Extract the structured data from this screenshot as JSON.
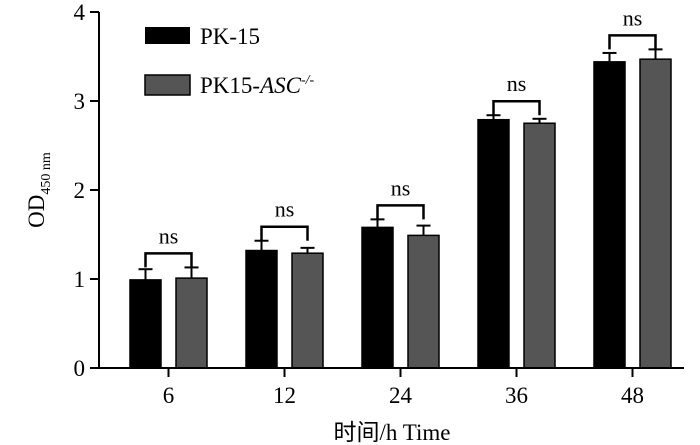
{
  "chart_data": {
    "type": "bar",
    "categories": [
      "6",
      "12",
      "24",
      "36",
      "48"
    ],
    "series": [
      {
        "name": "PK-15",
        "color": "#000000",
        "values": [
          0.99,
          1.32,
          1.58,
          2.79,
          3.44
        ],
        "errors": [
          0.12,
          0.11,
          0.09,
          0.05,
          0.1
        ]
      },
      {
        "name": "PK15-ASC-/-",
        "color": "#555555",
        "values": [
          1.01,
          1.29,
          1.49,
          2.75,
          3.47
        ],
        "errors": [
          0.12,
          0.06,
          0.11,
          0.05,
          0.11
        ]
      }
    ],
    "annotations": [
      "ns",
      "ns",
      "ns",
      "ns",
      "ns"
    ],
    "xlabel": "时间/h Time",
    "ylabel": {
      "main": "OD",
      "sub": "450 nm"
    },
    "yticks": [
      "0",
      "1",
      "2",
      "3",
      "4"
    ],
    "ylim": [
      0,
      4
    ],
    "grid": false,
    "legend": {
      "position": "top-left",
      "entries": [
        {
          "prefix": "PK-15",
          "italic": "",
          "sup": ""
        },
        {
          "prefix": "PK15-",
          "italic": "ASC",
          "sup": "-/-"
        }
      ]
    }
  }
}
